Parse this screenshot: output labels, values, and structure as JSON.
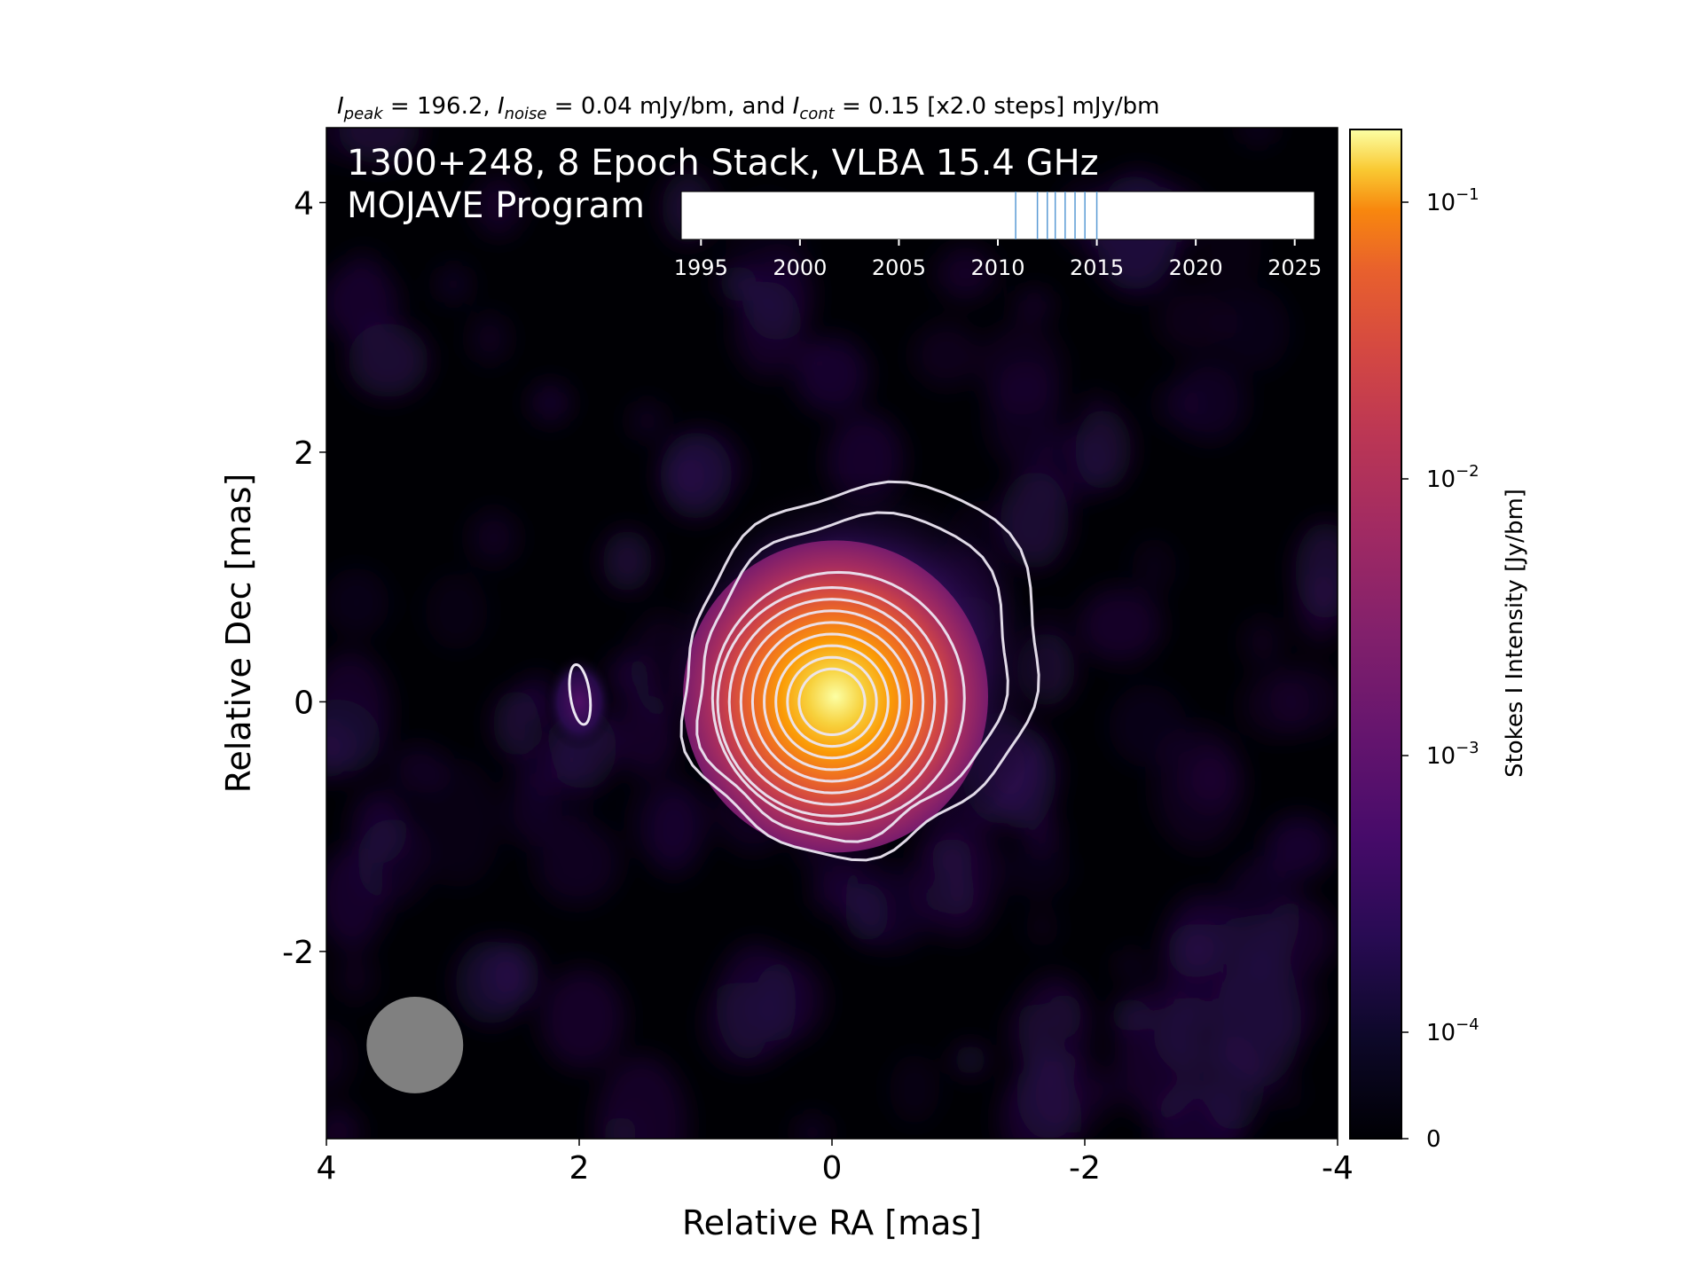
{
  "header": {
    "i_peak_label": "peak",
    "i_peak_value": "196.2",
    "i_noise_label": "noise",
    "i_noise_value": "0.04 mJy/bm",
    "i_cont_label": "cont",
    "i_cont_value": "0.15 [x2.0 steps] mJy/bm",
    "conj": "and"
  },
  "chart_data": {
    "type": "heatmap",
    "title": "1300+248, 8 Epoch Stack, VLBA 15.4 GHz",
    "subtitle": "MOJAVE Program",
    "xlabel": "Relative RA [mas]",
    "ylabel": "Relative Dec [mas]",
    "xlim": [
      4.0,
      -4.0
    ],
    "ylim": [
      -3.5,
      4.6
    ],
    "x_ticks": [
      4,
      2,
      0,
      -2,
      -4
    ],
    "x_tick_labels": [
      "4",
      "2",
      "0",
      "-2",
      "-4"
    ],
    "y_ticks": [
      4,
      2,
      0,
      -2
    ],
    "y_tick_labels": [
      "4",
      "2",
      "0",
      "-2"
    ],
    "colormap": "inferno",
    "colorbar": {
      "label": "Stokes I Intensity [Jy/bm]",
      "scale": "symlog",
      "ticks": [
        {
          "value": 0.1,
          "base": "10",
          "exp": "−1"
        },
        {
          "value": 0.01,
          "base": "10",
          "exp": "−2"
        },
        {
          "value": 0.001,
          "base": "10",
          "exp": "−3"
        },
        {
          "value": 0.0001,
          "base": "10",
          "exp": "−4"
        },
        {
          "value": 0,
          "base": "0",
          "exp": ""
        }
      ]
    },
    "source": {
      "core_ra": 0.0,
      "core_dec": 0.0,
      "peak_jy": 0.1962,
      "contour_levels_mjy": [
        0.15,
        0.3,
        0.6,
        1.2,
        2.4,
        4.8,
        9.6,
        19.2,
        38.4,
        76.8,
        153.6
      ],
      "secondary_contour": {
        "ra": 2.0,
        "dec": 0.0
      }
    },
    "beam": {
      "ra": 3.3,
      "dec": -2.75,
      "major_mas": 0.78,
      "minor_mas": 0.78
    },
    "epoch_timeline": {
      "xlim": [
        1994,
        2026
      ],
      "ticks": [
        1995,
        2000,
        2005,
        2010,
        2015,
        2020,
        2025
      ],
      "tick_labels": [
        "1995",
        "2000",
        "2005",
        "2010",
        "2015",
        "2020",
        "2025"
      ],
      "epochs": [
        2010.9,
        2012.0,
        2012.5,
        2012.9,
        2013.4,
        2013.9,
        2014.4,
        2015.0
      ],
      "line_color": "#5a9bd5"
    },
    "colors": {
      "background": "#000004",
      "contour": "#ece6f2",
      "beam": "#808080"
    }
  }
}
